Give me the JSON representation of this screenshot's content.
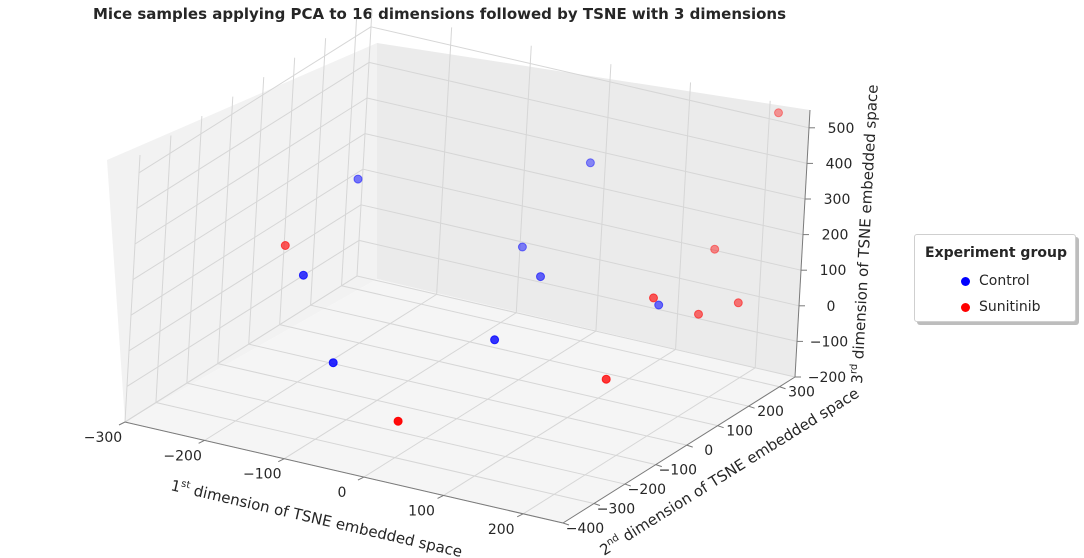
{
  "chart_data": {
    "type": "scatter",
    "title": "Mice samples applying PCA to 16 dimensions followed by TSNE with 3 dimensions",
    "xlabel": {
      "pre": "1",
      "sup": "st",
      "post": " dimension of TSNE embedded space"
    },
    "ylabel": {
      "pre": "2",
      "sup": "nd",
      "post": " dimension of TSNE embedded space"
    },
    "zlabel": {
      "pre": "3",
      "sup": "rd",
      "post": " dimension of TSNE embedded space"
    },
    "xticks": [
      "−300",
      "−200",
      "−100",
      "0",
      "100",
      "200"
    ],
    "yticks": [
      "−400",
      "−300",
      "−200",
      "−100",
      "0",
      "100",
      "200",
      "300"
    ],
    "zticks": [
      "−200",
      "−100",
      "0",
      "100",
      "200",
      "300",
      "400",
      "500"
    ],
    "xlim": [
      -300,
      250
    ],
    "ylim": [
      -400,
      350
    ],
    "zlim": [
      -200,
      550
    ],
    "grid": true,
    "legend": {
      "title": "Experiment group",
      "placement": "right"
    },
    "series": [
      {
        "name": "Control",
        "color": "#0000ff",
        "points": [
          [
            -250,
            200,
            180
          ],
          [
            -200,
            -100,
            100
          ],
          [
            -120,
            -200,
            -50
          ],
          [
            -60,
            250,
            60
          ],
          [
            0,
            300,
            300
          ],
          [
            20,
            100,
            100
          ],
          [
            60,
            -150,
            80
          ],
          [
            150,
            150,
            60
          ]
        ]
      },
      {
        "name": "Sunitinib",
        "color": "#ff0000",
        "points": [
          [
            -280,
            50,
            60
          ],
          [
            20,
            -350,
            -60
          ],
          [
            190,
            -120,
            20
          ],
          [
            180,
            50,
            150
          ],
          [
            200,
            150,
            60
          ],
          [
            230,
            200,
            80
          ],
          [
            160,
            300,
            140
          ],
          [
            200,
            380,
            500
          ]
        ]
      }
    ]
  }
}
